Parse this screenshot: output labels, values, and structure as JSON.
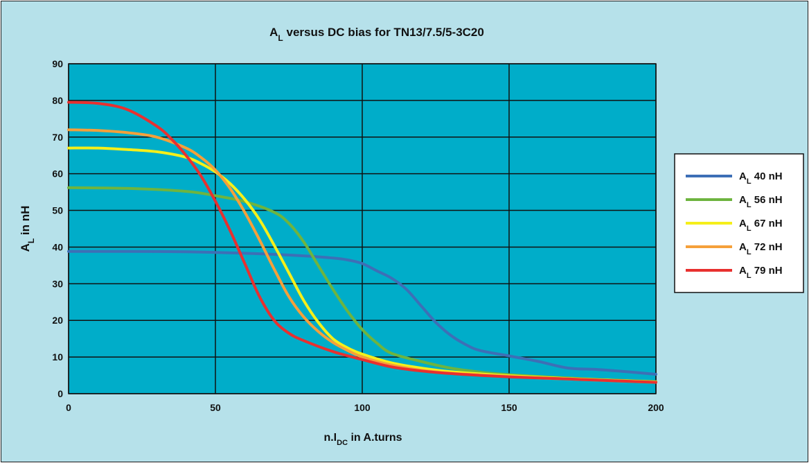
{
  "chart_data": {
    "type": "line",
    "title": {
      "main": "A",
      "sub": "L",
      "rest": " versus DC bias for TN13/7.5/5-3C20"
    },
    "xlabel": {
      "main": "n.I",
      "sub": "DC",
      "rest": " in A.turns"
    },
    "ylabel": {
      "main": "A",
      "sub": "L",
      "rest": " in nH"
    },
    "xlim": [
      0,
      200
    ],
    "ylim": [
      0,
      90
    ],
    "xticks": [
      0,
      50,
      100,
      150,
      200
    ],
    "yticks": [
      0,
      10,
      20,
      30,
      40,
      50,
      60,
      70,
      80,
      90
    ],
    "grid": true,
    "legend_position": "right",
    "colors": {
      "background": "#b6e1ea",
      "plot_area": "#00adc9",
      "grid": "#111111"
    },
    "series": [
      {
        "name": {
          "main": "A",
          "sub": "L",
          "rest": " 40 nH"
        },
        "color": "#3d6fb6",
        "x": [
          0,
          20,
          40,
          60,
          70,
          80,
          90,
          95,
          100,
          105,
          110,
          115,
          120,
          125,
          130,
          135,
          140,
          150,
          160,
          170,
          180,
          190,
          200
        ],
        "y": [
          38.8,
          38.8,
          38.7,
          38.3,
          38,
          37.6,
          37,
          36.5,
          35.5,
          33.5,
          31.5,
          28.5,
          24,
          19.5,
          16,
          13.5,
          11.8,
          10.3,
          8.8,
          7,
          6.6,
          6,
          5.3
        ]
      },
      {
        "name": {
          "main": "A",
          "sub": "L",
          "rest": " 56 nH"
        },
        "color": "#6eb43f",
        "x": [
          0,
          20,
          40,
          50,
          60,
          70,
          75,
          80,
          85,
          90,
          95,
          100,
          105,
          110,
          120,
          130,
          140,
          150,
          160,
          170,
          180,
          190,
          200
        ],
        "y": [
          56.2,
          56,
          55.2,
          54,
          52.4,
          49.5,
          46.5,
          41.5,
          35,
          28.5,
          22.5,
          17.5,
          13.8,
          11,
          8.8,
          7,
          5.9,
          5.2,
          4.7,
          4.3,
          3.9,
          3.6,
          3.3
        ]
      },
      {
        "name": {
          "main": "A",
          "sub": "L",
          "rest": " 67 nH"
        },
        "color": "#f5ef1a",
        "x": [
          0,
          10,
          20,
          30,
          40,
          45,
          50,
          55,
          60,
          65,
          70,
          75,
          80,
          85,
          90,
          95,
          100,
          110,
          120,
          130,
          140,
          150,
          160,
          170,
          180,
          190,
          200
        ],
        "y": [
          67,
          67,
          66.6,
          66,
          64.5,
          62.8,
          60.5,
          57.3,
          53,
          47.5,
          40.5,
          33,
          25.5,
          19.5,
          15,
          12.5,
          10.8,
          8.4,
          7,
          6,
          5.4,
          4.9,
          4.5,
          4.1,
          3.8,
          3.5,
          3.2
        ]
      },
      {
        "name": {
          "main": "A",
          "sub": "L",
          "rest": " 72 nH"
        },
        "color": "#f5a03a",
        "x": [
          0,
          10,
          20,
          30,
          40,
          45,
          50,
          55,
          60,
          65,
          70,
          75,
          80,
          85,
          90,
          95,
          100,
          110,
          120,
          130,
          140,
          150,
          160,
          170,
          180,
          190,
          200
        ],
        "y": [
          72,
          71.8,
          71.2,
          70,
          67,
          64.5,
          61,
          56,
          49.5,
          42,
          34,
          26.5,
          21,
          17,
          14,
          11.8,
          10,
          7.8,
          6.4,
          5.6,
          5.1,
          4.7,
          4.3,
          4,
          3.7,
          3.4,
          3.1
        ]
      },
      {
        "name": {
          "main": "A",
          "sub": "L",
          "rest": " 79 nH"
        },
        "color": "#e8302f",
        "x": [
          0,
          10,
          20,
          30,
          35,
          40,
          45,
          50,
          55,
          60,
          65,
          70,
          75,
          80,
          90,
          100,
          110,
          120,
          130,
          140,
          150,
          160,
          170,
          180,
          190,
          200
        ],
        "y": [
          79.5,
          79.2,
          77.5,
          73,
          69.5,
          65,
          59.5,
          52.5,
          44.5,
          35.5,
          26.5,
          20,
          16.5,
          14.5,
          11.5,
          9.3,
          7.3,
          6.2,
          5.5,
          5,
          4.6,
          4.3,
          4,
          3.7,
          3.4,
          3.1
        ]
      }
    ]
  }
}
